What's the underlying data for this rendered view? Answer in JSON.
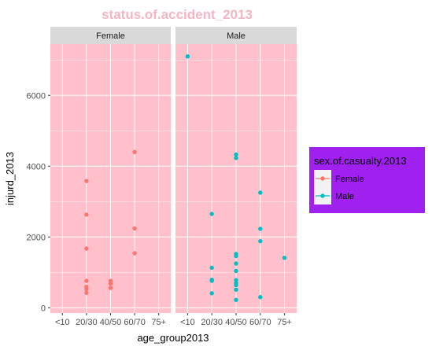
{
  "chart_data": {
    "type": "scatter",
    "title": "status.of.accident_2013",
    "xlabel": "age_group2013",
    "ylabel": "injurd_2013",
    "categories": [
      "<10",
      "20/30",
      "40/50",
      "60/70",
      "75+"
    ],
    "ylim": [
      -150,
      7450
    ],
    "yticks": [
      0,
      2000,
      4000,
      6000
    ],
    "grid": true,
    "legend": {
      "title": "sex.of.casualty.2013",
      "placement": "right",
      "entries": [
        {
          "name": "Female",
          "color": "#f8766d"
        },
        {
          "name": "Male",
          "color": "#00bfc4"
        }
      ]
    },
    "facets": [
      {
        "label": "Female",
        "color": "#f8766d",
        "points": [
          {
            "x": "20/30",
            "y": 3580
          },
          {
            "x": "20/30",
            "y": 2630
          },
          {
            "x": "20/30",
            "y": 1670
          },
          {
            "x": "20/30",
            "y": 760
          },
          {
            "x": "20/30",
            "y": 590
          },
          {
            "x": "20/30",
            "y": 520
          },
          {
            "x": "20/30",
            "y": 420
          },
          {
            "x": "40/50",
            "y": 760
          },
          {
            "x": "40/50",
            "y": 680
          },
          {
            "x": "40/50",
            "y": 560
          },
          {
            "x": "60/70",
            "y": 4400
          },
          {
            "x": "60/70",
            "y": 2240
          },
          {
            "x": "60/70",
            "y": 1540
          }
        ]
      },
      {
        "label": "Male",
        "color": "#00bfc4",
        "points": [
          {
            "x": "<10",
            "y": 7100
          },
          {
            "x": "20/30",
            "y": 2650
          },
          {
            "x": "20/30",
            "y": 1130
          },
          {
            "x": "20/30",
            "y": 790
          },
          {
            "x": "20/30",
            "y": 760
          },
          {
            "x": "20/30",
            "y": 410
          },
          {
            "x": "40/50",
            "y": 4330
          },
          {
            "x": "40/50",
            "y": 4230
          },
          {
            "x": "40/50",
            "y": 1520
          },
          {
            "x": "40/50",
            "y": 1460
          },
          {
            "x": "40/50",
            "y": 1250
          },
          {
            "x": "40/50",
            "y": 1040
          },
          {
            "x": "40/50",
            "y": 780
          },
          {
            "x": "40/50",
            "y": 700
          },
          {
            "x": "40/50",
            "y": 640
          },
          {
            "x": "40/50",
            "y": 510
          },
          {
            "x": "40/50",
            "y": 220
          },
          {
            "x": "60/70",
            "y": 3250
          },
          {
            "x": "60/70",
            "y": 2230
          },
          {
            "x": "60/70",
            "y": 1880
          },
          {
            "x": "60/70",
            "y": 300
          },
          {
            "x": "75+",
            "y": 1410
          }
        ]
      }
    ]
  }
}
